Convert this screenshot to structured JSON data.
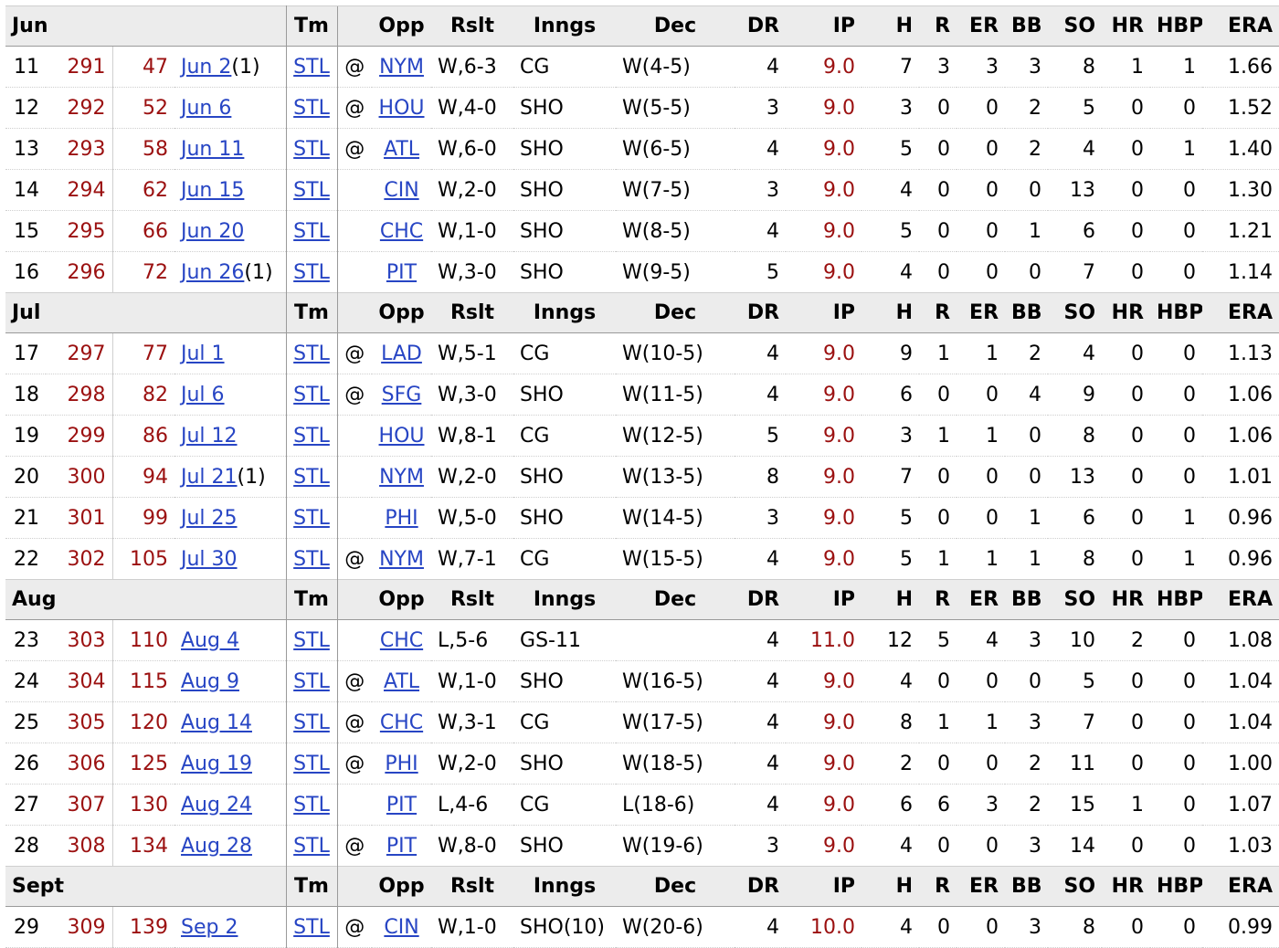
{
  "headers": [
    "Tm",
    "",
    "Opp",
    "Rslt",
    "Inngs",
    "Dec",
    "DR",
    "IP",
    "H",
    "R",
    "ER",
    "BB",
    "SO",
    "HR",
    "HBP",
    "ERA"
  ],
  "sections": [
    {
      "month": "Jun",
      "rows": [
        {
          "gcar": "11",
          "car": "291",
          "tmg": "47",
          "date": "Jun 2",
          "suffix": "(1)",
          "tm": "STL",
          "at": "@",
          "opp": "NYM",
          "rslt": "W,6-3",
          "inngs": "CG",
          "dec": "W(4-5)",
          "dr": "4",
          "ip": "9.0",
          "h": "7",
          "r": "3",
          "er": "3",
          "bb": "3",
          "so": "8",
          "hr": "1",
          "hbp": "1",
          "era": "1.66"
        },
        {
          "gcar": "12",
          "car": "292",
          "tmg": "52",
          "date": "Jun 6",
          "suffix": "",
          "tm": "STL",
          "at": "@",
          "opp": "HOU",
          "rslt": "W,4-0",
          "inngs": "SHO",
          "dec": "W(5-5)",
          "dr": "3",
          "ip": "9.0",
          "h": "3",
          "r": "0",
          "er": "0",
          "bb": "2",
          "so": "5",
          "hr": "0",
          "hbp": "0",
          "era": "1.52"
        },
        {
          "gcar": "13",
          "car": "293",
          "tmg": "58",
          "date": "Jun 11",
          "suffix": "",
          "tm": "STL",
          "at": "@",
          "opp": "ATL",
          "rslt": "W,6-0",
          "inngs": "SHO",
          "dec": "W(6-5)",
          "dr": "4",
          "ip": "9.0",
          "h": "5",
          "r": "0",
          "er": "0",
          "bb": "2",
          "so": "4",
          "hr": "0",
          "hbp": "1",
          "era": "1.40"
        },
        {
          "gcar": "14",
          "car": "294",
          "tmg": "62",
          "date": "Jun 15",
          "suffix": "",
          "tm": "STL",
          "at": "",
          "opp": "CIN",
          "rslt": "W,2-0",
          "inngs": "SHO",
          "dec": "W(7-5)",
          "dr": "3",
          "ip": "9.0",
          "h": "4",
          "r": "0",
          "er": "0",
          "bb": "0",
          "so": "13",
          "hr": "0",
          "hbp": "0",
          "era": "1.30"
        },
        {
          "gcar": "15",
          "car": "295",
          "tmg": "66",
          "date": "Jun 20",
          "suffix": "",
          "tm": "STL",
          "at": "",
          "opp": "CHC",
          "rslt": "W,1-0",
          "inngs": "SHO",
          "dec": "W(8-5)",
          "dr": "4",
          "ip": "9.0",
          "h": "5",
          "r": "0",
          "er": "0",
          "bb": "1",
          "so": "6",
          "hr": "0",
          "hbp": "0",
          "era": "1.21"
        },
        {
          "gcar": "16",
          "car": "296",
          "tmg": "72",
          "date": "Jun 26",
          "suffix": "(1)",
          "tm": "STL",
          "at": "",
          "opp": "PIT",
          "rslt": "W,3-0",
          "inngs": "SHO",
          "dec": "W(9-5)",
          "dr": "5",
          "ip": "9.0",
          "h": "4",
          "r": "0",
          "er": "0",
          "bb": "0",
          "so": "7",
          "hr": "0",
          "hbp": "0",
          "era": "1.14"
        }
      ]
    },
    {
      "month": "Jul",
      "rows": [
        {
          "gcar": "17",
          "car": "297",
          "tmg": "77",
          "date": "Jul 1",
          "suffix": "",
          "tm": "STL",
          "at": "@",
          "opp": "LAD",
          "rslt": "W,5-1",
          "inngs": "CG",
          "dec": "W(10-5)",
          "dr": "4",
          "ip": "9.0",
          "h": "9",
          "r": "1",
          "er": "1",
          "bb": "2",
          "so": "4",
          "hr": "0",
          "hbp": "0",
          "era": "1.13"
        },
        {
          "gcar": "18",
          "car": "298",
          "tmg": "82",
          "date": "Jul 6",
          "suffix": "",
          "tm": "STL",
          "at": "@",
          "opp": "SFG",
          "rslt": "W,3-0",
          "inngs": "SHO",
          "dec": "W(11-5)",
          "dr": "4",
          "ip": "9.0",
          "h": "6",
          "r": "0",
          "er": "0",
          "bb": "4",
          "so": "9",
          "hr": "0",
          "hbp": "0",
          "era": "1.06"
        },
        {
          "gcar": "19",
          "car": "299",
          "tmg": "86",
          "date": "Jul 12",
          "suffix": "",
          "tm": "STL",
          "at": "",
          "opp": "HOU",
          "rslt": "W,8-1",
          "inngs": "CG",
          "dec": "W(12-5)",
          "dr": "5",
          "ip": "9.0",
          "h": "3",
          "r": "1",
          "er": "1",
          "bb": "0",
          "so": "8",
          "hr": "0",
          "hbp": "0",
          "era": "1.06"
        },
        {
          "gcar": "20",
          "car": "300",
          "tmg": "94",
          "date": "Jul 21",
          "suffix": "(1)",
          "tm": "STL",
          "at": "",
          "opp": "NYM",
          "rslt": "W,2-0",
          "inngs": "SHO",
          "dec": "W(13-5)",
          "dr": "8",
          "ip": "9.0",
          "h": "7",
          "r": "0",
          "er": "0",
          "bb": "0",
          "so": "13",
          "hr": "0",
          "hbp": "0",
          "era": "1.01"
        },
        {
          "gcar": "21",
          "car": "301",
          "tmg": "99",
          "date": "Jul 25",
          "suffix": "",
          "tm": "STL",
          "at": "",
          "opp": "PHI",
          "rslt": "W,5-0",
          "inngs": "SHO",
          "dec": "W(14-5)",
          "dr": "3",
          "ip": "9.0",
          "h": "5",
          "r": "0",
          "er": "0",
          "bb": "1",
          "so": "6",
          "hr": "0",
          "hbp": "1",
          "era": "0.96"
        },
        {
          "gcar": "22",
          "car": "302",
          "tmg": "105",
          "date": "Jul 30",
          "suffix": "",
          "tm": "STL",
          "at": "@",
          "opp": "NYM",
          "rslt": "W,7-1",
          "inngs": "CG",
          "dec": "W(15-5)",
          "dr": "4",
          "ip": "9.0",
          "h": "5",
          "r": "1",
          "er": "1",
          "bb": "1",
          "so": "8",
          "hr": "0",
          "hbp": "1",
          "era": "0.96"
        }
      ]
    },
    {
      "month": "Aug",
      "rows": [
        {
          "gcar": "23",
          "car": "303",
          "tmg": "110",
          "date": "Aug 4",
          "suffix": "",
          "tm": "STL",
          "at": "",
          "opp": "CHC",
          "rslt": "L,5-6",
          "inngs": "GS-11",
          "dec": "",
          "dr": "4",
          "ip": "11.0",
          "h": "12",
          "r": "5",
          "er": "4",
          "bb": "3",
          "so": "10",
          "hr": "2",
          "hbp": "0",
          "era": "1.08"
        },
        {
          "gcar": "24",
          "car": "304",
          "tmg": "115",
          "date": "Aug 9",
          "suffix": "",
          "tm": "STL",
          "at": "@",
          "opp": "ATL",
          "rslt": "W,1-0",
          "inngs": "SHO",
          "dec": "W(16-5)",
          "dr": "4",
          "ip": "9.0",
          "h": "4",
          "r": "0",
          "er": "0",
          "bb": "0",
          "so": "5",
          "hr": "0",
          "hbp": "0",
          "era": "1.04"
        },
        {
          "gcar": "25",
          "car": "305",
          "tmg": "120",
          "date": "Aug 14",
          "suffix": "",
          "tm": "STL",
          "at": "@",
          "opp": "CHC",
          "rslt": "W,3-1",
          "inngs": "CG",
          "dec": "W(17-5)",
          "dr": "4",
          "ip": "9.0",
          "h": "8",
          "r": "1",
          "er": "1",
          "bb": "3",
          "so": "7",
          "hr": "0",
          "hbp": "0",
          "era": "1.04"
        },
        {
          "gcar": "26",
          "car": "306",
          "tmg": "125",
          "date": "Aug 19",
          "suffix": "",
          "tm": "STL",
          "at": "@",
          "opp": "PHI",
          "rslt": "W,2-0",
          "inngs": "SHO",
          "dec": "W(18-5)",
          "dr": "4",
          "ip": "9.0",
          "h": "2",
          "r": "0",
          "er": "0",
          "bb": "2",
          "so": "11",
          "hr": "0",
          "hbp": "0",
          "era": "1.00"
        },
        {
          "gcar": "27",
          "car": "307",
          "tmg": "130",
          "date": "Aug 24",
          "suffix": "",
          "tm": "STL",
          "at": "",
          "opp": "PIT",
          "rslt": "L,4-6",
          "inngs": "CG",
          "dec": "L(18-6)",
          "dr": "4",
          "ip": "9.0",
          "h": "6",
          "r": "6",
          "er": "3",
          "bb": "2",
          "so": "15",
          "hr": "1",
          "hbp": "0",
          "era": "1.07"
        },
        {
          "gcar": "28",
          "car": "308",
          "tmg": "134",
          "date": "Aug 28",
          "suffix": "",
          "tm": "STL",
          "at": "@",
          "opp": "PIT",
          "rslt": "W,8-0",
          "inngs": "SHO",
          "dec": "W(19-6)",
          "dr": "3",
          "ip": "9.0",
          "h": "4",
          "r": "0",
          "er": "0",
          "bb": "3",
          "so": "14",
          "hr": "0",
          "hbp": "0",
          "era": "1.03"
        }
      ]
    },
    {
      "month": "Sept",
      "rows": [
        {
          "gcar": "29",
          "car": "309",
          "tmg": "139",
          "date": "Sep 2",
          "suffix": "",
          "tm": "STL",
          "at": "@",
          "opp": "CIN",
          "rslt": "W,1-0",
          "inngs": "SHO(10)",
          "dec": "W(20-6)",
          "dr": "4",
          "ip": "10.0",
          "h": "4",
          "r": "0",
          "er": "0",
          "bb": "3",
          "so": "8",
          "hr": "0",
          "hbp": "0",
          "era": "0.99"
        }
      ]
    }
  ]
}
